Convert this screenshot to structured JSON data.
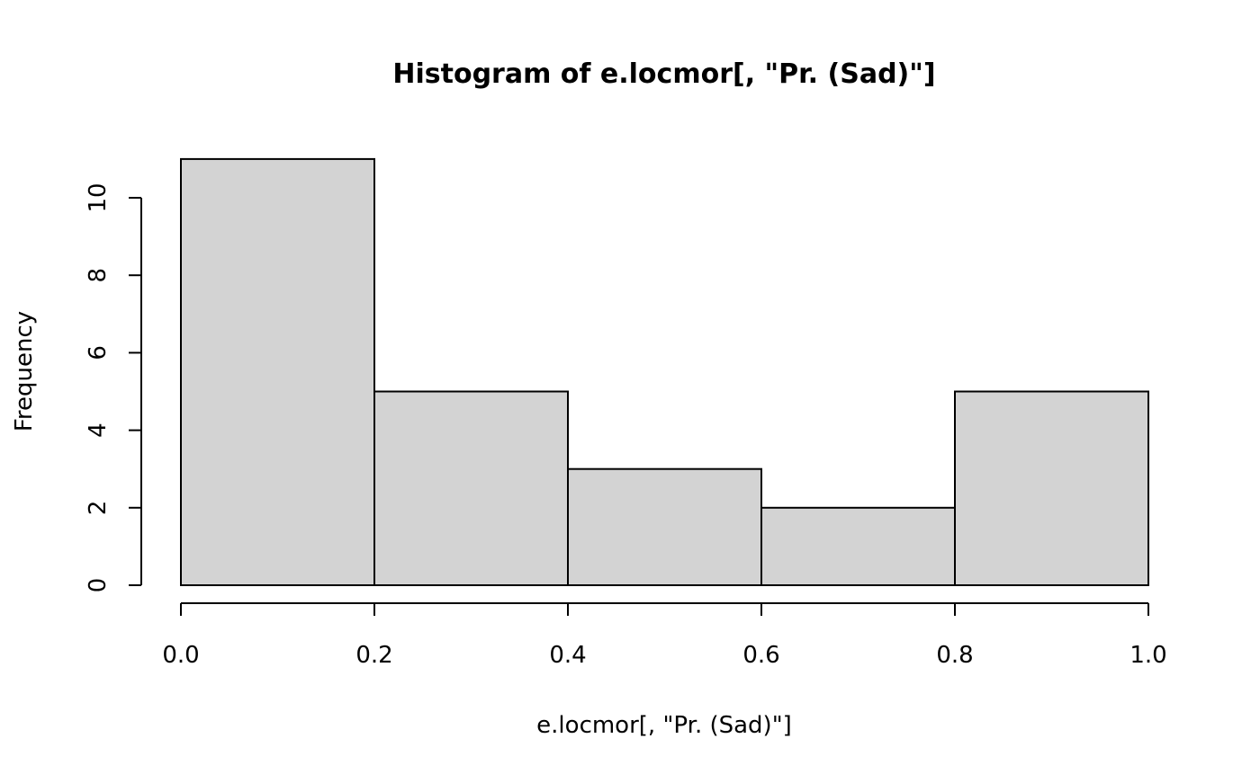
{
  "chart_data": {
    "type": "bar",
    "title": "Histogram of e.locmor[, \"Pr. (Sad)\"]",
    "xlabel": "e.locmor[, \"Pr. (Sad)\"]",
    "ylabel": "Frequency",
    "bins": [
      {
        "from": 0.0,
        "to": 0.2,
        "count": 11
      },
      {
        "from": 0.2,
        "to": 0.4,
        "count": 5
      },
      {
        "from": 0.4,
        "to": 0.6,
        "count": 3
      },
      {
        "from": 0.6,
        "to": 0.8,
        "count": 2
      },
      {
        "from": 0.8,
        "to": 1.0,
        "count": 5
      }
    ],
    "xlim": [
      0.0,
      1.0
    ],
    "ylim": [
      0,
      11
    ],
    "x_ticks": [
      "0.0",
      "0.2",
      "0.4",
      "0.6",
      "0.8",
      "1.0"
    ],
    "y_ticks": [
      "0",
      "2",
      "4",
      "6",
      "8",
      "10"
    ],
    "grid": false,
    "bar_color": "#d3d3d3",
    "edge_color": "#000000"
  }
}
